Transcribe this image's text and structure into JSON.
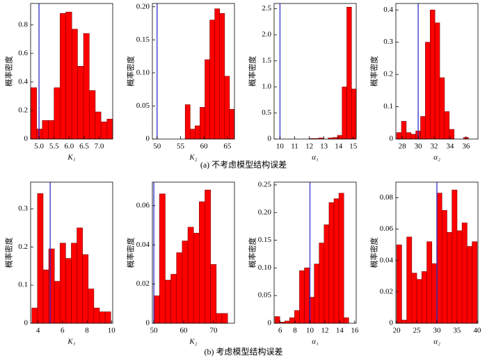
{
  "captions": [
    "(a) 不考虑模型结构误差",
    "(b) 考虑模型结构误差"
  ],
  "chart_data": [
    {
      "type": "histogram",
      "xlabel": "K₁",
      "ylabel": "概率密度",
      "color": "#ff0000",
      "reference_color": "#2a2acc",
      "reference_line": 5,
      "bins": [
        4.72,
        4.92,
        5.11,
        5.31,
        5.5,
        5.7,
        5.89,
        6.09,
        6.28,
        6.48,
        6.67,
        6.87,
        7.06,
        7.26,
        7.45
      ],
      "values": [
        0.36,
        0.07,
        0.13,
        0.13,
        0.36,
        0.88,
        0.89,
        0.77,
        0.51,
        0.74,
        0.34,
        0.19,
        0.12,
        0.14
      ],
      "xlim": [
        4.72,
        7.45
      ],
      "xticks": [
        {
          "value": 5,
          "label": "5.0"
        },
        5.5,
        {
          "value": 6,
          "label": "6.0"
        },
        6.5,
        {
          "value": 7,
          "label": "7.0"
        }
      ],
      "ylim": [
        0,
        0.95
      ],
      "yticks": [
        0,
        0.2,
        0.4,
        0.6,
        0.8
      ]
    },
    {
      "type": "histogram",
      "xlabel": "K₂",
      "ylabel": "概率密度",
      "color": "#ff0000",
      "reference_color": "#2a2acc",
      "reference_line": 50,
      "bins": [
        56,
        57.05,
        58.1,
        59.15,
        60.2,
        61.25,
        62.3,
        63.35,
        64.4,
        65.45,
        66.5
      ],
      "values": [
        0.052,
        0.015,
        0.02,
        0.048,
        0.12,
        0.18,
        0.197,
        0.19,
        0.095,
        0.045
      ],
      "xlim": [
        49,
        66.5
      ],
      "xticks": [
        50,
        55,
        60,
        65
      ],
      "ylim": [
        0,
        0.205
      ],
      "yticks": [
        0,
        0.05,
        {
          "value": 0.1,
          "label": "0.10"
        },
        0.15,
        {
          "value": 0.2,
          "label": "0.20"
        }
      ]
    },
    {
      "type": "histogram",
      "xlabel": "α₁",
      "ylabel": "概率密度",
      "color": "#ff0000",
      "reference_color": "#2a2acc",
      "reference_line": 10,
      "bins": [
        12,
        12.32,
        12.64,
        12.96,
        13.28,
        13.6,
        13.92,
        14.24,
        14.56,
        14.88,
        15.2
      ],
      "values": [
        0.01,
        0.01,
        0.02,
        0,
        0.02,
        0.03,
        0.07,
        1.0,
        2.53,
        0.96
      ],
      "xlim": [
        9.6,
        15.2
      ],
      "xticks": [
        10,
        11,
        12,
        13,
        14,
        15
      ],
      "ylim": [
        0,
        2.6
      ],
      "yticks": [
        0,
        0.5,
        {
          "value": 1,
          "label": "1.0"
        },
        1.5,
        {
          "value": 2,
          "label": "2.0"
        },
        2.5
      ]
    },
    {
      "type": "histogram",
      "xlabel": "α₂",
      "ylabel": "概率密度",
      "color": "#ff0000",
      "reference_color": "#2a2acc",
      "reference_line": 30,
      "bins": [
        27.3,
        27.9,
        28.5,
        29.1,
        29.7,
        30.3,
        30.9,
        31.5,
        32.1,
        32.7,
        33.3,
        33.9,
        34.5,
        35.1,
        35.7,
        36.3
      ],
      "values": [
        0.02,
        0.055,
        0.02,
        0.015,
        0.025,
        0.07,
        0.3,
        0.4,
        0.36,
        0.19,
        0.085,
        0.03,
        0,
        0,
        0.005
      ],
      "xlim": [
        27.2,
        37.5
      ],
      "xticks": [
        28,
        30,
        32,
        34,
        36
      ],
      "ylim": [
        0,
        0.42
      ],
      "yticks": [
        0,
        0.1,
        0.2,
        0.3,
        0.4
      ]
    },
    {
      "type": "histogram",
      "xlabel": "K₁",
      "ylabel": "概率密度",
      "color": "#ff0000",
      "reference_color": "#2a2acc",
      "reference_line": 5,
      "bins": [
        3.5,
        3.96,
        4.42,
        4.88,
        5.34,
        5.8,
        6.26,
        6.72,
        7.18,
        7.64,
        8.1,
        8.56,
        9.02,
        9.48,
        9.94
      ],
      "values": [
        0.04,
        0.34,
        0.14,
        0.195,
        0.11,
        0.21,
        0.17,
        0.21,
        0.25,
        0.18,
        0.09,
        0.04,
        0.03,
        0.03
      ],
      "xlim": [
        3.4,
        10.1
      ],
      "xticks": [
        4,
        6,
        8,
        10
      ],
      "ylim": [
        0,
        0.37
      ],
      "yticks": [
        0,
        0.1,
        0.2,
        0.3
      ]
    },
    {
      "type": "histogram",
      "xlabel": "K₂",
      "ylabel": "概率密度",
      "color": "#ff0000",
      "reference_color": "#2a2acc",
      "reference_line": 50,
      "bins": [
        50,
        51.9,
        53.8,
        55.7,
        57.6,
        59.5,
        61.4,
        63.3,
        65.2,
        67.1,
        69,
        70.9,
        72.8,
        74.7
      ],
      "values": [
        0.014,
        0.066,
        0.022,
        0.025,
        0.036,
        0.042,
        0.049,
        0.046,
        0.062,
        0.068,
        0.03,
        0.005,
        0.005
      ],
      "xlim": [
        49.5,
        77
      ],
      "xticks": [
        50,
        60,
        70
      ],
      "ylim": [
        0,
        0.072
      ],
      "yticks": [
        0,
        0.02,
        0.04,
        0.06
      ]
    },
    {
      "type": "histogram",
      "xlabel": "α₁",
      "ylabel": "概率密度",
      "color": "#ff0000",
      "reference_color": "#2a2acc",
      "reference_line": 10,
      "bins": [
        5.3,
        5.96,
        6.62,
        7.28,
        7.94,
        8.6,
        9.26,
        9.92,
        10.58,
        11.24,
        11.9,
        12.56,
        13.22,
        13.88,
        14.54,
        15.2
      ],
      "values": [
        0.012,
        0.002,
        0.004,
        0.01,
        0.023,
        0.095,
        0.1,
        0.047,
        0.107,
        0.145,
        0.178,
        0.218,
        0.225,
        0.235,
        0.01
      ],
      "xlim": [
        5.2,
        16.2
      ],
      "xticks": [
        6,
        8,
        10,
        12,
        14,
        16
      ],
      "ylim": [
        0,
        0.255
      ],
      "yticks": [
        0,
        0.05,
        {
          "value": 0.1,
          "label": "0.10"
        },
        0.15,
        {
          "value": 0.2,
          "label": "0.20"
        },
        0.25
      ]
    },
    {
      "type": "histogram",
      "xlabel": "α₂",
      "ylabel": "概率密度",
      "color": "#ff0000",
      "reference_color": "#2a2acc",
      "reference_line": 30,
      "bins": [
        20,
        21.25,
        22.5,
        23.75,
        25,
        26.25,
        27.5,
        28.75,
        30,
        31.25,
        32.5,
        33.75,
        35,
        36.25,
        37.5,
        38.75,
        40
      ],
      "values": [
        0.05,
        0.002,
        0.055,
        0.032,
        0.028,
        0.033,
        0.052,
        0.038,
        0.083,
        0.072,
        0.058,
        0.085,
        0.059,
        0.064,
        0.049,
        0.052
      ],
      "xlim": [
        19.8,
        40.2
      ],
      "xticks": [
        20,
        25,
        30,
        35,
        40
      ],
      "ylim": [
        0,
        0.09
      ],
      "yticks": [
        0,
        0.02,
        0.04,
        0.06,
        0.08
      ]
    }
  ]
}
